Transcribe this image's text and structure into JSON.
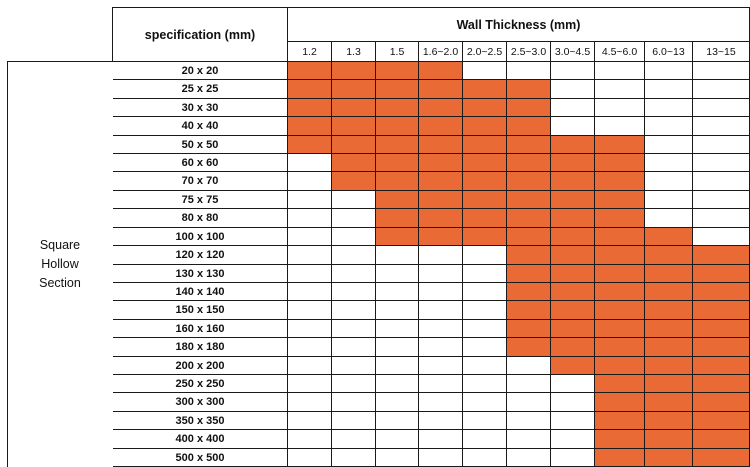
{
  "header": {
    "spec_label": "specification      (mm)",
    "thickness_title": "Wall Thickness (mm)"
  },
  "category": {
    "lines": [
      "Square",
      "Hollow",
      "Section"
    ]
  },
  "thicknesses": [
    "1.2",
    "1.3",
    "1.5",
    "1.6~2.0",
    "2.0~2.5",
    "2.5~3.0",
    "3.0~4.5",
    "4.5~6.0",
    "6.0~13",
    "13~15"
  ],
  "rows": [
    {
      "spec": "20 x 20",
      "avail": [
        1,
        1,
        1,
        1,
        0,
        0,
        0,
        0,
        0,
        0
      ]
    },
    {
      "spec": "25 x 25",
      "avail": [
        1,
        1,
        1,
        1,
        1,
        1,
        0,
        0,
        0,
        0
      ]
    },
    {
      "spec": "30 x 30",
      "avail": [
        1,
        1,
        1,
        1,
        1,
        1,
        0,
        0,
        0,
        0
      ]
    },
    {
      "spec": "40 x 40",
      "avail": [
        1,
        1,
        1,
        1,
        1,
        1,
        0,
        0,
        0,
        0
      ]
    },
    {
      "spec": "50 x 50",
      "avail": [
        1,
        1,
        1,
        1,
        1,
        1,
        1,
        1,
        0,
        0
      ]
    },
    {
      "spec": "60 x 60",
      "avail": [
        0,
        1,
        1,
        1,
        1,
        1,
        1,
        1,
        0,
        0
      ]
    },
    {
      "spec": "70 x 70",
      "avail": [
        0,
        1,
        1,
        1,
        1,
        1,
        1,
        1,
        0,
        0
      ]
    },
    {
      "spec": "75 x 75",
      "avail": [
        0,
        0,
        1,
        1,
        1,
        1,
        1,
        1,
        0,
        0
      ]
    },
    {
      "spec": "80 x 80",
      "avail": [
        0,
        0,
        1,
        1,
        1,
        1,
        1,
        1,
        0,
        0
      ]
    },
    {
      "spec": "100 x 100",
      "avail": [
        0,
        0,
        1,
        1,
        1,
        1,
        1,
        1,
        1,
        0
      ]
    },
    {
      "spec": "120 x 120",
      "avail": [
        0,
        0,
        0,
        0,
        0,
        1,
        1,
        1,
        1,
        1
      ]
    },
    {
      "spec": "130 x 130",
      "avail": [
        0,
        0,
        0,
        0,
        0,
        1,
        1,
        1,
        1,
        1
      ]
    },
    {
      "spec": "140 x 140",
      "avail": [
        0,
        0,
        0,
        0,
        0,
        1,
        1,
        1,
        1,
        1
      ]
    },
    {
      "spec": "150 x 150",
      "avail": [
        0,
        0,
        0,
        0,
        0,
        1,
        1,
        1,
        1,
        1
      ]
    },
    {
      "spec": "160 x 160",
      "avail": [
        0,
        0,
        0,
        0,
        0,
        1,
        1,
        1,
        1,
        1
      ]
    },
    {
      "spec": "180 x 180",
      "avail": [
        0,
        0,
        0,
        0,
        0,
        1,
        1,
        1,
        1,
        1
      ]
    },
    {
      "spec": "200 x 200",
      "avail": [
        0,
        0,
        0,
        0,
        0,
        0,
        1,
        1,
        1,
        1
      ]
    },
    {
      "spec": "250 x 250",
      "avail": [
        0,
        0,
        0,
        0,
        0,
        0,
        0,
        1,
        1,
        1
      ]
    },
    {
      "spec": "300 x 300",
      "avail": [
        0,
        0,
        0,
        0,
        0,
        0,
        0,
        1,
        1,
        1
      ]
    },
    {
      "spec": "350 x 350",
      "avail": [
        0,
        0,
        0,
        0,
        0,
        0,
        0,
        1,
        1,
        1
      ]
    },
    {
      "spec": "400 x 400",
      "avail": [
        0,
        0,
        0,
        0,
        0,
        0,
        0,
        1,
        1,
        1
      ]
    },
    {
      "spec": "500 x 500",
      "avail": [
        0,
        0,
        0,
        0,
        0,
        0,
        0,
        1,
        1,
        1
      ]
    }
  ],
  "colors": {
    "available": "#ea6a35",
    "empty": "#ffffff",
    "grid": "#1a1a1a"
  }
}
